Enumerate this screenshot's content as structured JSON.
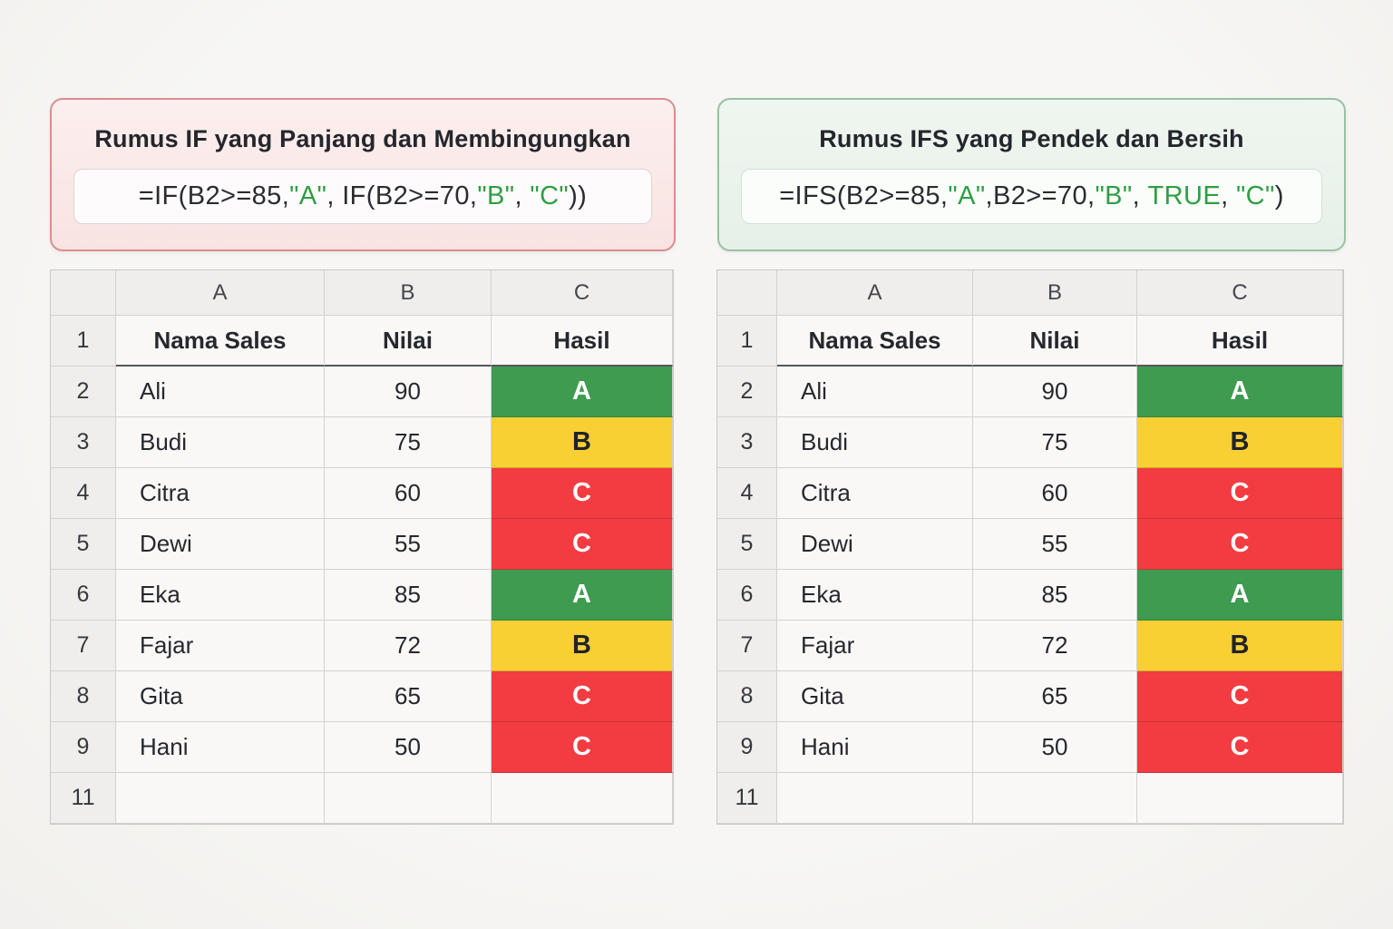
{
  "colors": {
    "grade_green": "#3e9b50",
    "grade_yellow": "#f9d034",
    "grade_red": "#f23c41",
    "grade_text_light": "#ffffff",
    "grade_text_dark": "#212329",
    "formula_green": "#2f9e44",
    "formula_dark": "#2a2c31"
  },
  "panels": [
    {
      "title": "Rumus IF yang Panjang dan Membingungkan",
      "formula_segments": [
        {
          "text": "=IF(B2>=85,",
          "color": "dark"
        },
        {
          "text": "\"A\"",
          "color": "green"
        },
        {
          "text": ", IF(B2>=70,",
          "color": "dark"
        },
        {
          "text": "\"B\"",
          "color": "green"
        },
        {
          "text": ", ",
          "color": "dark"
        },
        {
          "text": "\"C\"",
          "color": "green"
        },
        {
          "text": "))",
          "color": "dark"
        }
      ]
    },
    {
      "title": "Rumus IFS yang Pendek dan Bersih",
      "formula_segments": [
        {
          "text": "=IFS(B2>=85,",
          "color": "dark"
        },
        {
          "text": "\"A\"",
          "color": "green"
        },
        {
          "text": ",B2>=70,",
          "color": "dark"
        },
        {
          "text": "\"B\"",
          "color": "green"
        },
        {
          "text": ", ",
          "color": "dark"
        },
        {
          "text": "TRUE",
          "color": "green"
        },
        {
          "text": ", ",
          "color": "dark"
        },
        {
          "text": "\"C\"",
          "color": "green"
        },
        {
          "text": ")",
          "color": "dark"
        }
      ]
    }
  ],
  "spreadsheet": {
    "column_letters": [
      "A",
      "B",
      "C"
    ],
    "header_row": {
      "row_number": "1",
      "cells": [
        "Nama Sales",
        "Nilai",
        "Hasil"
      ]
    },
    "data_rows": [
      {
        "row_number": "2",
        "nama": "Ali",
        "nilai": "90",
        "hasil": "A"
      },
      {
        "row_number": "3",
        "nama": "Budi",
        "nilai": "75",
        "hasil": "B"
      },
      {
        "row_number": "4",
        "nama": "Citra",
        "nilai": "60",
        "hasil": "C"
      },
      {
        "row_number": "5",
        "nama": "Dewi",
        "nilai": "55",
        "hasil": "C"
      },
      {
        "row_number": "6",
        "nama": "Eka",
        "nilai": "85",
        "hasil": "A"
      },
      {
        "row_number": "7",
        "nama": "Fajar",
        "nilai": "72",
        "hasil": "B"
      },
      {
        "row_number": "8",
        "nama": "Gita",
        "nilai": "65",
        "hasil": "C"
      },
      {
        "row_number": "9",
        "nama": "Hani",
        "nilai": "50",
        "hasil": "C"
      }
    ],
    "trailing_empty_row_number": "11"
  }
}
